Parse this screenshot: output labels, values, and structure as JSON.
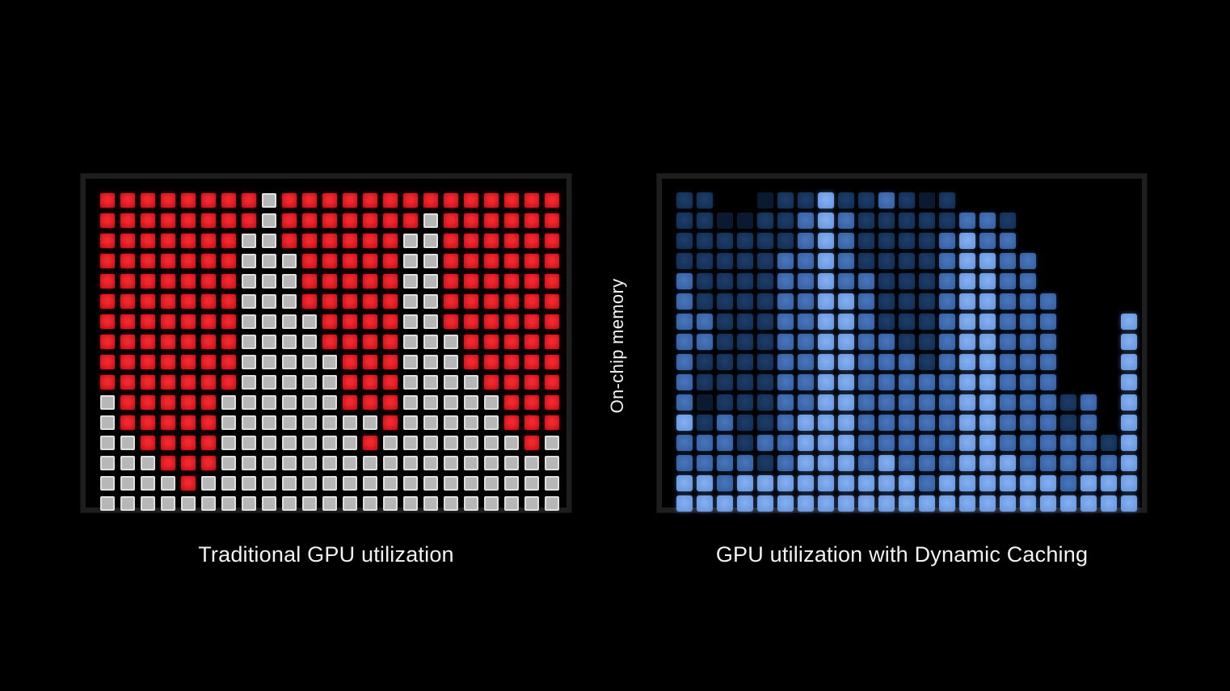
{
  "page": {
    "background": "#000000"
  },
  "divider": {
    "label": "On-chip memory"
  },
  "panels": [
    {
      "id": "left",
      "caption": "Traditional GPU utilization",
      "rows": 16,
      "cols": 23,
      "legend": {
        "R": "occupied-red-block",
        "G": "unused-gray-block"
      },
      "colors": {
        "R": "#d6141c",
        "G": "#bfbfbf",
        "frame": "#1e1e1e",
        "background": "#000000"
      },
      "grid": [
        "RRRRRRRRGRRRRRRRRRRRRRR",
        "RRRRRRRRGRRRRRRRGRRRRRR",
        "RRRRRRRGGRRRRRRGGRRRRRR",
        "RRRRRRRGGGRRRRRGGRRRRRR",
        "RRRRRRRGGGRRRRRGGRRRRRR",
        "RRRRRRRGGGRRRRRGGRRRRRR",
        "RRRRRRRGGGGRRRRGGRRRRRR",
        "RRRRRRRGGGGRRRRGGGRRRRR",
        "RRRRRRRGGGGGRRRGGGRRRRR",
        "RRRRRRRGGGGGRRRGGGGRRRR",
        "GRRRRRGGGGGGRRRGGGGGRRR",
        "GRRRRRGGGGGGGGRGGGGGRRR",
        "GGRRRRGGGGGGGRGGGGGGGRG",
        "GGGRRRGGGGGGGGGGGGGGGGG",
        "GGGGRGGGGGGGGGGGGGGGGGG",
        "GGGGGGGGGGGGGGGGGGGGGGG"
      ]
    },
    {
      "id": "right",
      "caption": "GPU utilization with Dynamic Caching",
      "rows": 16,
      "cols": 23,
      "legend": {
        "0": "empty-slot",
        "1": "very-dim-blue",
        "2": "dark-blue",
        "3": "medium-blue",
        "4": "bright-blue"
      },
      "colors": {
        "1": "#0b1a31",
        "2": "#17345c",
        "3": "#3e6cb3",
        "4": "#74a3ea",
        "frame": "#1e1e1e",
        "background": "#000000"
      },
      "grid": [
        "22001224223212000000000",
        "22112234322222332000000",
        "22222234322223433000000",
        "22222334322223443300000",
        "32222334332223443300000",
        "32222334432223443330000",
        "33222334432223443330004",
        "33222334433223443330004",
        "32222334433323443330004",
        "32222334433333443330004",
        "31222334433333443332304",
        "42322344433333443332304",
        "33323344433333443333324",
        "33332344434333444333334",
        "44344444444434444443444",
        "44444444444444444444444"
      ]
    }
  ]
}
